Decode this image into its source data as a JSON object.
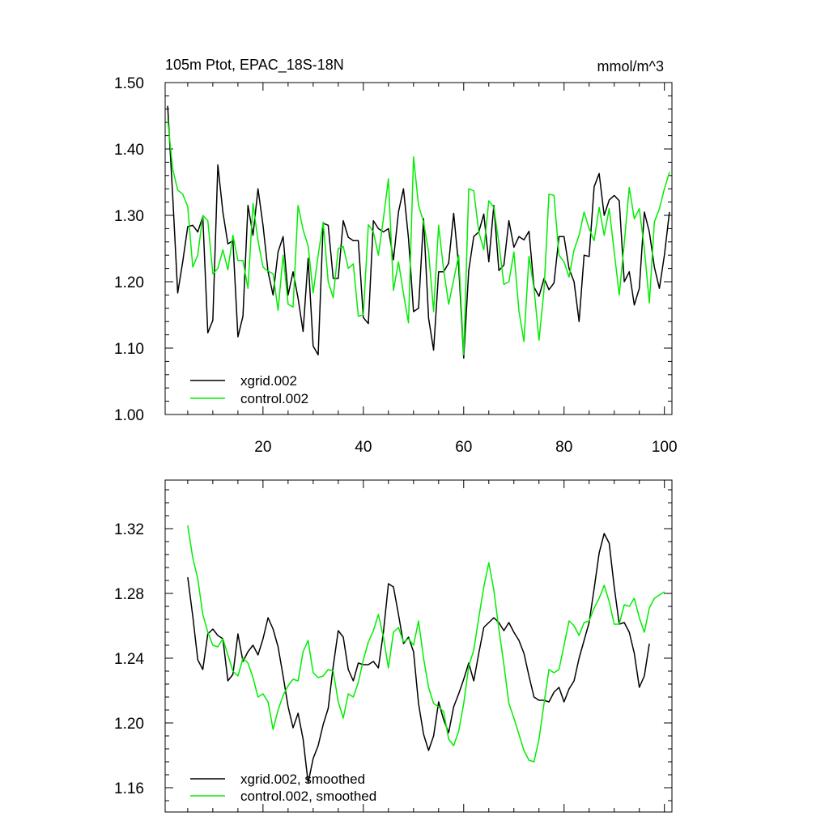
{
  "chart_data": [
    {
      "type": "line",
      "title": "105m Ptot, EPAC_18S-18N",
      "units": "mmol/m^3",
      "xlim": [
        0.5,
        101.5
      ],
      "ylim": [
        1.0,
        1.5
      ],
      "x_ticks": [
        20,
        40,
        60,
        80,
        100
      ],
      "x_tick_labels": [
        "20",
        "40",
        "60",
        "80",
        "100"
      ],
      "y_ticks": [
        1.0,
        1.1,
        1.2,
        1.3,
        1.4,
        1.5
      ],
      "y_tick_labels": [
        "1.00",
        "1.10",
        "1.20",
        "1.30",
        "1.40",
        "1.50"
      ],
      "legend_position": "bottom-left",
      "series": [
        {
          "name": "xgrid.002",
          "color": "#000000",
          "x_start": 1,
          "values": [
            1.465,
            1.33,
            1.183,
            1.23,
            1.283,
            1.285,
            1.275,
            1.298,
            1.123,
            1.142,
            1.376,
            1.305,
            1.257,
            1.262,
            1.117,
            1.148,
            1.315,
            1.27,
            1.34,
            1.285,
            1.215,
            1.18,
            1.245,
            1.268,
            1.18,
            1.215,
            1.175,
            1.125,
            1.235,
            1.103,
            1.09,
            1.288,
            1.285,
            1.205,
            1.205,
            1.292,
            1.267,
            1.262,
            1.262,
            1.146,
            1.137,
            1.292,
            1.28,
            1.275,
            1.28,
            1.233,
            1.305,
            1.34,
            1.265,
            1.155,
            1.16,
            1.295,
            1.145,
            1.097,
            1.215,
            1.215,
            1.228,
            1.303,
            1.223,
            1.085,
            1.217,
            1.268,
            1.275,
            1.302,
            1.23,
            1.315,
            1.217,
            1.225,
            1.292,
            1.252,
            1.268,
            1.263,
            1.276,
            1.192,
            1.178,
            1.205,
            1.188,
            1.198,
            1.268,
            1.268,
            1.22,
            1.2,
            1.14,
            1.24,
            1.238,
            1.343,
            1.363,
            1.3,
            1.323,
            1.33,
            1.322,
            1.2,
            1.215,
            1.165,
            1.19,
            1.305,
            1.275,
            1.222,
            1.19,
            1.24,
            1.305
          ]
        },
        {
          "name": "control.002",
          "color": "#00ee00",
          "x_start": 1,
          "values": [
            1.445,
            1.37,
            1.338,
            1.332,
            1.313,
            1.222,
            1.24,
            1.3,
            1.292,
            1.212,
            1.22,
            1.248,
            1.218,
            1.27,
            1.232,
            1.232,
            1.19,
            1.318,
            1.262,
            1.222,
            1.216,
            1.212,
            1.157,
            1.24,
            1.166,
            1.162,
            1.315,
            1.278,
            1.254,
            1.183,
            1.24,
            1.29,
            1.2,
            1.176,
            1.25,
            1.253,
            1.22,
            1.227,
            1.148,
            1.15,
            1.286,
            1.275,
            1.24,
            1.295,
            1.355,
            1.187,
            1.23,
            1.182,
            1.138,
            1.388,
            1.315,
            1.29,
            1.245,
            1.155,
            1.285,
            1.218,
            1.166,
            1.203,
            1.24,
            1.09,
            1.34,
            1.337,
            1.275,
            1.248,
            1.322,
            1.312,
            1.258,
            1.196,
            1.2,
            1.245,
            1.156,
            1.11,
            1.238,
            1.19,
            1.112,
            1.188,
            1.332,
            1.33,
            1.24,
            1.23,
            1.207,
            1.248,
            1.27,
            1.305,
            1.28,
            1.262,
            1.312,
            1.27,
            1.31,
            1.245,
            1.18,
            1.258,
            1.342,
            1.295,
            1.31,
            1.25,
            1.168,
            1.29,
            1.31,
            1.34,
            1.365
          ]
        }
      ]
    },
    {
      "type": "line",
      "title": "",
      "xlim": [
        0.5,
        101.5
      ],
      "ylim": [
        1.145,
        1.35
      ],
      "x_ticks": [
        20,
        40,
        60,
        80,
        100
      ],
      "y_ticks": [
        1.16,
        1.2,
        1.24,
        1.28,
        1.32
      ],
      "y_tick_labels": [
        "1.16",
        "1.20",
        "1.24",
        "1.28",
        "1.32"
      ],
      "legend_position": "bottom-left",
      "series": [
        {
          "name": "xgrid.002, smoothed",
          "color": "#000000",
          "x_start": 5,
          "values": [
            1.29,
            1.266,
            1.239,
            1.233,
            1.255,
            1.258,
            1.254,
            1.252,
            1.226,
            1.23,
            1.255,
            1.238,
            1.244,
            1.248,
            1.242,
            1.252,
            1.265,
            1.258,
            1.247,
            1.229,
            1.21,
            1.197,
            1.206,
            1.19,
            1.163,
            1.178,
            1.186,
            1.199,
            1.209,
            1.235,
            1.257,
            1.253,
            1.233,
            1.226,
            1.237,
            1.236,
            1.236,
            1.238,
            1.234,
            1.256,
            1.286,
            1.284,
            1.267,
            1.249,
            1.253,
            1.244,
            1.212,
            1.193,
            1.183,
            1.192,
            1.213,
            1.202,
            1.194,
            1.21,
            1.218,
            1.227,
            1.237,
            1.226,
            1.243,
            1.259,
            1.262,
            1.265,
            1.262,
            1.257,
            1.262,
            1.256,
            1.251,
            1.243,
            1.229,
            1.216,
            1.214,
            1.214,
            1.213,
            1.219,
            1.222,
            1.213,
            1.221,
            1.226,
            1.24,
            1.251,
            1.262,
            1.283,
            1.305,
            1.317,
            1.311,
            1.284,
            1.261,
            1.262,
            1.256,
            1.243,
            1.222,
            1.229,
            1.249
          ]
        },
        {
          "name": "control.002, smoothed",
          "color": "#00ee00",
          "x_start": 5,
          "values": [
            1.322,
            1.302,
            1.289,
            1.267,
            1.256,
            1.248,
            1.247,
            1.252,
            1.242,
            1.232,
            1.229,
            1.24,
            1.237,
            1.228,
            1.216,
            1.218,
            1.213,
            1.196,
            1.208,
            1.217,
            1.223,
            1.227,
            1.226,
            1.244,
            1.251,
            1.231,
            1.228,
            1.229,
            1.233,
            1.232,
            1.213,
            1.203,
            1.218,
            1.216,
            1.225,
            1.239,
            1.25,
            1.257,
            1.267,
            1.253,
            1.234,
            1.256,
            1.259,
            1.25,
            1.252,
            1.248,
            1.263,
            1.24,
            1.222,
            1.212,
            1.21,
            1.207,
            1.19,
            1.186,
            1.195,
            1.212,
            1.235,
            1.245,
            1.265,
            1.284,
            1.299,
            1.282,
            1.258,
            1.236,
            1.212,
            1.203,
            1.193,
            1.183,
            1.177,
            1.176,
            1.19,
            1.212,
            1.233,
            1.231,
            1.233,
            1.248,
            1.263,
            1.26,
            1.254,
            1.262,
            1.263,
            1.271,
            1.277,
            1.285,
            1.275,
            1.261,
            1.261,
            1.273,
            1.272,
            1.277,
            1.265,
            1.256,
            1.271,
            1.277,
            1.279,
            1.281
          ]
        }
      ]
    }
  ]
}
